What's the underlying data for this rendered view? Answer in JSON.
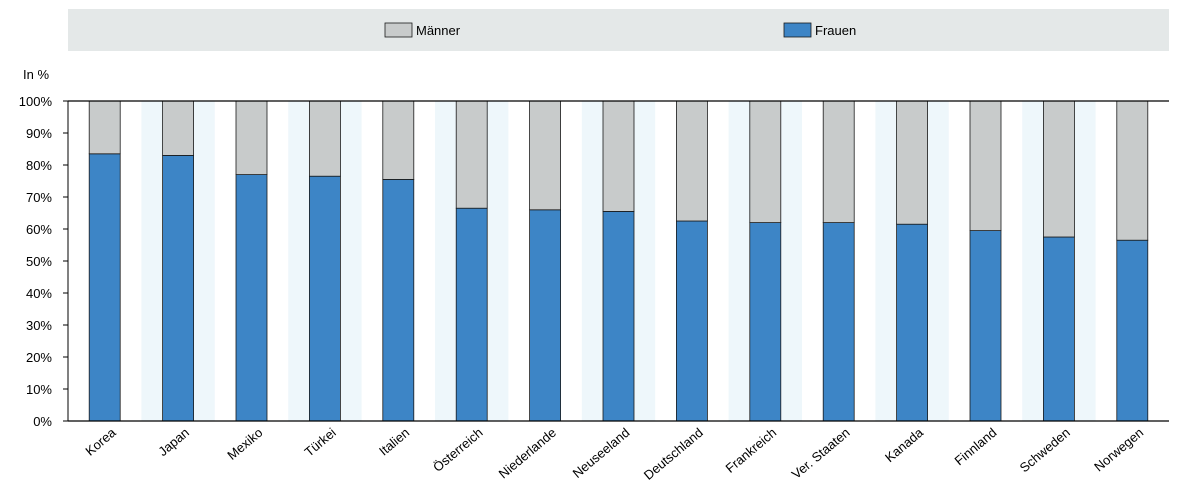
{
  "chart_data": {
    "type": "bar",
    "stacked": true,
    "percent_stacked": true,
    "y_unit_label": "In %",
    "categories": [
      "Korea",
      "Japan",
      "Mexiko",
      "Türkei",
      "Italien",
      "Österreich",
      "Niederlande",
      "Neuseeland",
      "Deutschland",
      "Frankreich",
      "Ver. Staaten",
      "Kanada",
      "Finnland",
      "Schweden",
      "Norwegen"
    ],
    "series": [
      {
        "name": "Frauen",
        "color": "#3d85c6",
        "values": [
          83.5,
          83,
          77,
          76.5,
          75.5,
          66.5,
          66,
          65.5,
          62.5,
          62,
          62,
          61.5,
          59.5,
          57.5,
          56.5
        ]
      },
      {
        "name": "Männer",
        "color": "#c8cbcb",
        "values": [
          16.5,
          17,
          23,
          23.5,
          24.5,
          33.5,
          34,
          34.5,
          37.5,
          38,
          38,
          38.5,
          40.5,
          42.5,
          43.5
        ]
      }
    ],
    "ylim": [
      0,
      100
    ],
    "yticks": [
      "0%",
      "10%",
      "20%",
      "30%",
      "40%",
      "50%",
      "60%",
      "70%",
      "80%",
      "90%",
      "100%"
    ],
    "legend": {
      "position": "top",
      "order": [
        "Männer",
        "Frauen"
      ]
    },
    "colors": {
      "legend_band": "#e4e8e8",
      "column_band": "#eef7fb",
      "axis": "#000000"
    }
  }
}
